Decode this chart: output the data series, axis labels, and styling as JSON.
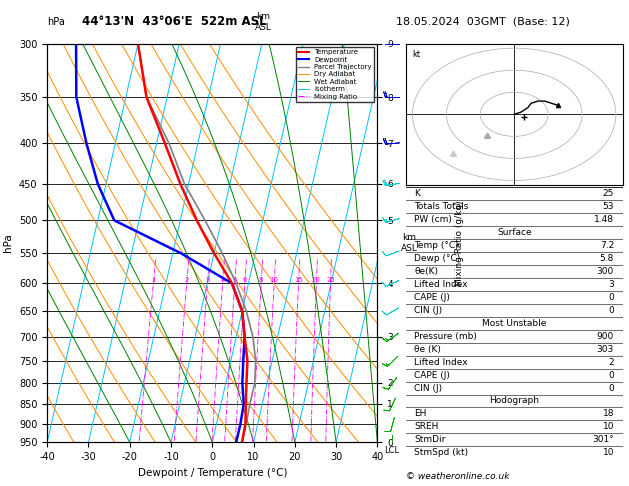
{
  "title_left": "44°13'N  43°06'E  522m ASL",
  "title_right": "18.05.2024  03GMT  (Base: 12)",
  "xlabel": "Dewpoint / Temperature (°C)",
  "pressure_levels": [
    300,
    350,
    400,
    450,
    500,
    550,
    600,
    650,
    700,
    750,
    800,
    850,
    900,
    950
  ],
  "pressure_min": 300,
  "pressure_max": 950,
  "temp_min": -40,
  "temp_max": 40,
  "skew_factor": 22,
  "temp_profile_T": [
    -40,
    -35,
    -28,
    -22,
    -16,
    -10,
    -4,
    0,
    2,
    4,
    5,
    6,
    7,
    7.2
  ],
  "temp_profile_P": [
    300,
    350,
    400,
    450,
    500,
    550,
    600,
    650,
    700,
    750,
    800,
    850,
    900,
    950
  ],
  "dewp_profile_T": [
    -55,
    -52,
    -47,
    -42,
    -36,
    -18,
    -4,
    0,
    2,
    3,
    4,
    5.5,
    5.8,
    5.8
  ],
  "dewp_profile_P": [
    300,
    350,
    400,
    450,
    500,
    550,
    600,
    650,
    700,
    750,
    800,
    850,
    900,
    950
  ],
  "parcel_profile_T": [
    -40,
    -35,
    -27,
    -21,
    -14,
    -8,
    -3,
    1,
    4,
    6,
    7,
    7,
    7.2,
    7.2
  ],
  "parcel_profile_P": [
    300,
    350,
    400,
    450,
    500,
    550,
    600,
    650,
    700,
    750,
    800,
    850,
    900,
    950
  ],
  "mixing_ratios": [
    1,
    2,
    3,
    4,
    5,
    6,
    8,
    10,
    15,
    20,
    25
  ],
  "dry_adiabat_thetas": [
    -40,
    -30,
    -20,
    -10,
    0,
    10,
    20,
    30,
    40,
    50,
    60,
    70,
    80
  ],
  "wet_adiabat_temps": [
    -20,
    -10,
    0,
    10,
    20,
    30,
    40
  ],
  "isotherm_temps": [
    -40,
    -30,
    -20,
    -10,
    0,
    10,
    20,
    30,
    40
  ],
  "km_levels": {
    "300": 9,
    "350": 8,
    "400": 7,
    "450": 6,
    "500": 5,
    "600": 4,
    "700": 3,
    "800": 2,
    "850": 1,
    "950": 0
  },
  "legend_items": [
    {
      "label": "Temperature",
      "color": "#ff0000",
      "lw": 1.5,
      "ls": "-"
    },
    {
      "label": "Dewpoint",
      "color": "#0000ff",
      "lw": 1.5,
      "ls": "-"
    },
    {
      "label": "Parcel Trajectory",
      "color": "#808080",
      "lw": 1.0,
      "ls": "-"
    },
    {
      "label": "Dry Adiabat",
      "color": "#ff8c00",
      "lw": 0.7,
      "ls": "-"
    },
    {
      "label": "Wet Adiabat",
      "color": "#008000",
      "lw": 0.7,
      "ls": "-"
    },
    {
      "label": "Isotherm",
      "color": "#00bfff",
      "lw": 0.7,
      "ls": "-"
    },
    {
      "label": "Mixing Ratio",
      "color": "#ff00ff",
      "lw": 0.7,
      "ls": "-."
    }
  ],
  "indices": [
    {
      "label": "K",
      "value": "25"
    },
    {
      "label": "Totals Totals",
      "value": "53"
    },
    {
      "label": "PW (cm)",
      "value": "1.48"
    }
  ],
  "surface_title": "Surface",
  "surface_rows": [
    {
      "label": "Temp (°C)",
      "value": "7.2"
    },
    {
      "label": "Dewp (°C)",
      "value": "5.8"
    },
    {
      "label": "θe(K)",
      "value": "300"
    },
    {
      "label": "Lifted Index",
      "value": "3"
    },
    {
      "label": "CAPE (J)",
      "value": "0"
    },
    {
      "label": "CIN (J)",
      "value": "0"
    }
  ],
  "unstable_title": "Most Unstable",
  "unstable_rows": [
    {
      "label": "Pressure (mb)",
      "value": "900"
    },
    {
      "label": "θe (K)",
      "value": "303"
    },
    {
      "label": "Lifted Index",
      "value": "2"
    },
    {
      "label": "CAPE (J)",
      "value": "0"
    },
    {
      "label": "CIN (J)",
      "value": "0"
    }
  ],
  "hodograph_title": "Hodograph",
  "hodograph_rows": [
    {
      "label": "EH",
      "value": "18"
    },
    {
      "label": "SREH",
      "value": "10"
    },
    {
      "label": "StmDir",
      "value": "301°"
    },
    {
      "label": "StmSpd (kt)",
      "value": "10"
    }
  ],
  "copyright": "© weatheronline.co.uk",
  "lcl_pressure": 950,
  "hodo_path_u": [
    0,
    2,
    4,
    5,
    7,
    9,
    11,
    13
  ],
  "hodo_path_v": [
    0,
    1,
    3,
    5,
    6,
    6,
    5,
    4
  ],
  "hodo_circles": [
    10,
    20,
    30
  ],
  "wind_data": [
    {
      "p": 950,
      "spd": 5,
      "dir": 180
    },
    {
      "p": 900,
      "spd": 8,
      "dir": 195
    },
    {
      "p": 850,
      "spd": 10,
      "dir": 205
    },
    {
      "p": 800,
      "spd": 12,
      "dir": 215
    },
    {
      "p": 750,
      "spd": 14,
      "dir": 225
    },
    {
      "p": 700,
      "spd": 15,
      "dir": 235
    },
    {
      "p": 650,
      "spd": 12,
      "dir": 240
    },
    {
      "p": 600,
      "spd": 10,
      "dir": 245
    },
    {
      "p": 550,
      "spd": 12,
      "dir": 250
    },
    {
      "p": 500,
      "spd": 15,
      "dir": 255
    },
    {
      "p": 450,
      "spd": 18,
      "dir": 260
    },
    {
      "p": 400,
      "spd": 20,
      "dir": 265
    },
    {
      "p": 350,
      "spd": 22,
      "dir": 270
    },
    {
      "p": 300,
      "spd": 25,
      "dir": 270
    }
  ]
}
